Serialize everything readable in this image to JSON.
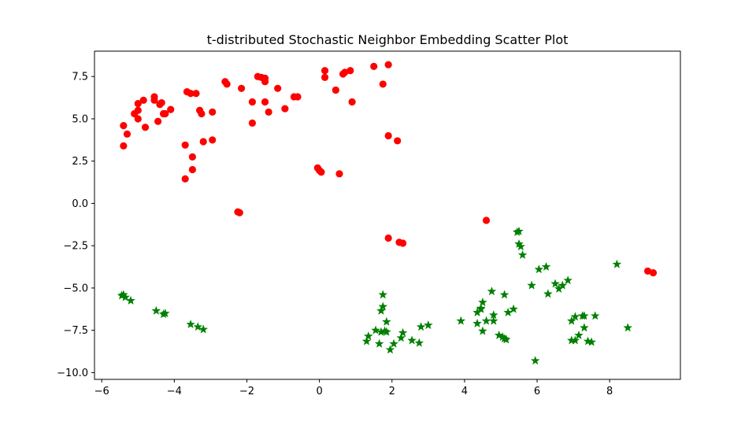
{
  "chart_data": {
    "type": "scatter",
    "title": "t-distributed Stochastic Neighbor Embedding Scatter Plot",
    "xlabel": "",
    "ylabel": "",
    "xlim": [
      -6.2,
      9.95
    ],
    "ylim": [
      -10.4,
      9.0
    ],
    "xticks": [
      -6,
      -4,
      -2,
      0,
      2,
      4,
      6,
      8
    ],
    "yticks": [
      -10.0,
      -7.5,
      -5.0,
      -2.5,
      0.0,
      2.5,
      5.0,
      7.5
    ],
    "xtick_labels": [
      "−6",
      "−4",
      "−2",
      "0",
      "2",
      "4",
      "6",
      "8"
    ],
    "ytick_labels": [
      "−10.0",
      "−7.5",
      "−5.0",
      "−2.5",
      "0.0",
      "2.5",
      "5.0",
      "7.5"
    ],
    "grid": false,
    "legend": "none",
    "series": [
      {
        "marker": "circle",
        "color": "#ff0000",
        "points": [
          [
            -5.4,
            4.6
          ],
          [
            -5.3,
            4.1
          ],
          [
            -5.4,
            3.4
          ],
          [
            -5.1,
            5.3
          ],
          [
            -5.0,
            5.9
          ],
          [
            -5.0,
            5.5
          ],
          [
            -5.0,
            5.0
          ],
          [
            -4.85,
            6.1
          ],
          [
            -4.8,
            4.5
          ],
          [
            -4.55,
            6.3
          ],
          [
            -4.55,
            6.1
          ],
          [
            -4.45,
            4.85
          ],
          [
            -4.4,
            5.85
          ],
          [
            -4.35,
            5.95
          ],
          [
            -4.3,
            5.3
          ],
          [
            -4.25,
            5.3
          ],
          [
            -4.1,
            5.55
          ],
          [
            -3.7,
            3.45
          ],
          [
            -3.7,
            1.45
          ],
          [
            -3.65,
            6.6
          ],
          [
            -3.55,
            6.5
          ],
          [
            -3.5,
            2.75
          ],
          [
            -3.5,
            2.0
          ],
          [
            -3.4,
            6.5
          ],
          [
            -3.3,
            5.5
          ],
          [
            -3.25,
            5.3
          ],
          [
            -3.2,
            3.65
          ],
          [
            -2.95,
            3.75
          ],
          [
            -2.95,
            5.4
          ],
          [
            -2.6,
            7.2
          ],
          [
            -2.55,
            7.05
          ],
          [
            -2.25,
            -0.5
          ],
          [
            -2.2,
            -0.55
          ],
          [
            -2.15,
            6.8
          ],
          [
            -1.85,
            6.0
          ],
          [
            -1.85,
            4.75
          ],
          [
            -1.7,
            7.5
          ],
          [
            -1.6,
            7.45
          ],
          [
            -1.5,
            7.4
          ],
          [
            -1.5,
            6.0
          ],
          [
            -1.5,
            7.2
          ],
          [
            -1.4,
            5.4
          ],
          [
            -1.15,
            6.8
          ],
          [
            -0.95,
            5.6
          ],
          [
            -0.7,
            6.3
          ],
          [
            -0.6,
            6.3
          ],
          [
            -0.05,
            2.1
          ],
          [
            0.0,
            1.95
          ],
          [
            0.05,
            1.85
          ],
          [
            0.15,
            7.85
          ],
          [
            0.15,
            7.45
          ],
          [
            0.45,
            6.7
          ],
          [
            0.55,
            1.75
          ],
          [
            0.65,
            7.65
          ],
          [
            0.7,
            7.75
          ],
          [
            0.85,
            7.85
          ],
          [
            0.9,
            6.0
          ],
          [
            1.5,
            8.1
          ],
          [
            1.75,
            7.05
          ],
          [
            1.9,
            8.2
          ],
          [
            1.9,
            4.0
          ],
          [
            1.9,
            -2.05
          ],
          [
            2.15,
            3.7
          ],
          [
            2.2,
            -2.3
          ],
          [
            2.3,
            -2.35
          ],
          [
            4.6,
            -1.0
          ],
          [
            9.05,
            -4.0
          ],
          [
            9.2,
            -4.1
          ]
        ]
      },
      {
        "marker": "star",
        "color": "#008000",
        "points": [
          [
            -5.45,
            -5.45
          ],
          [
            -5.4,
            -5.4
          ],
          [
            -5.35,
            -5.55
          ],
          [
            -5.2,
            -5.75
          ],
          [
            -4.5,
            -6.35
          ],
          [
            -4.3,
            -6.55
          ],
          [
            -4.25,
            -6.5
          ],
          [
            -3.55,
            -7.15
          ],
          [
            -3.35,
            -7.3
          ],
          [
            -3.2,
            -7.45
          ],
          [
            1.3,
            -8.15
          ],
          [
            1.35,
            -7.85
          ],
          [
            1.55,
            -7.5
          ],
          [
            1.65,
            -8.3
          ],
          [
            1.7,
            -6.35
          ],
          [
            1.7,
            -7.6
          ],
          [
            1.75,
            -6.1
          ],
          [
            1.75,
            -5.4
          ],
          [
            1.8,
            -7.55
          ],
          [
            1.85,
            -7.0
          ],
          [
            1.85,
            -7.6
          ],
          [
            1.95,
            -8.65
          ],
          [
            2.05,
            -8.3
          ],
          [
            2.25,
            -7.95
          ],
          [
            2.3,
            -7.65
          ],
          [
            2.55,
            -8.1
          ],
          [
            2.75,
            -8.25
          ],
          [
            2.8,
            -7.3
          ],
          [
            3.0,
            -7.2
          ],
          [
            3.9,
            -6.95
          ],
          [
            4.35,
            -6.45
          ],
          [
            4.35,
            -7.1
          ],
          [
            4.45,
            -6.25
          ],
          [
            4.45,
            -6.2
          ],
          [
            4.5,
            -5.85
          ],
          [
            4.5,
            -7.55
          ],
          [
            4.6,
            -6.95
          ],
          [
            4.75,
            -5.2
          ],
          [
            4.8,
            -6.6
          ],
          [
            4.8,
            -6.95
          ],
          [
            4.95,
            -7.8
          ],
          [
            5.05,
            -7.9
          ],
          [
            5.1,
            -5.4
          ],
          [
            5.1,
            -8.0
          ],
          [
            5.15,
            -8.05
          ],
          [
            5.2,
            -6.45
          ],
          [
            5.35,
            -6.25
          ],
          [
            5.45,
            -1.7
          ],
          [
            5.5,
            -1.65
          ],
          [
            5.5,
            -2.4
          ],
          [
            5.55,
            -2.55
          ],
          [
            5.6,
            -3.05
          ],
          [
            5.85,
            -4.85
          ],
          [
            5.95,
            -9.3
          ],
          [
            6.05,
            -3.9
          ],
          [
            6.25,
            -3.75
          ],
          [
            6.3,
            -5.35
          ],
          [
            6.5,
            -4.75
          ],
          [
            6.6,
            -5.05
          ],
          [
            6.7,
            -4.85
          ],
          [
            6.85,
            -4.55
          ],
          [
            6.95,
            -6.95
          ],
          [
            6.95,
            -8.1
          ],
          [
            7.05,
            -8.1
          ],
          [
            7.05,
            -6.7
          ],
          [
            7.15,
            -7.8
          ],
          [
            7.25,
            -6.65
          ],
          [
            7.3,
            -6.65
          ],
          [
            7.3,
            -7.35
          ],
          [
            7.4,
            -8.15
          ],
          [
            7.5,
            -8.2
          ],
          [
            7.6,
            -6.65
          ],
          [
            8.2,
            -3.6
          ],
          [
            8.5,
            -7.35
          ]
        ]
      }
    ]
  }
}
